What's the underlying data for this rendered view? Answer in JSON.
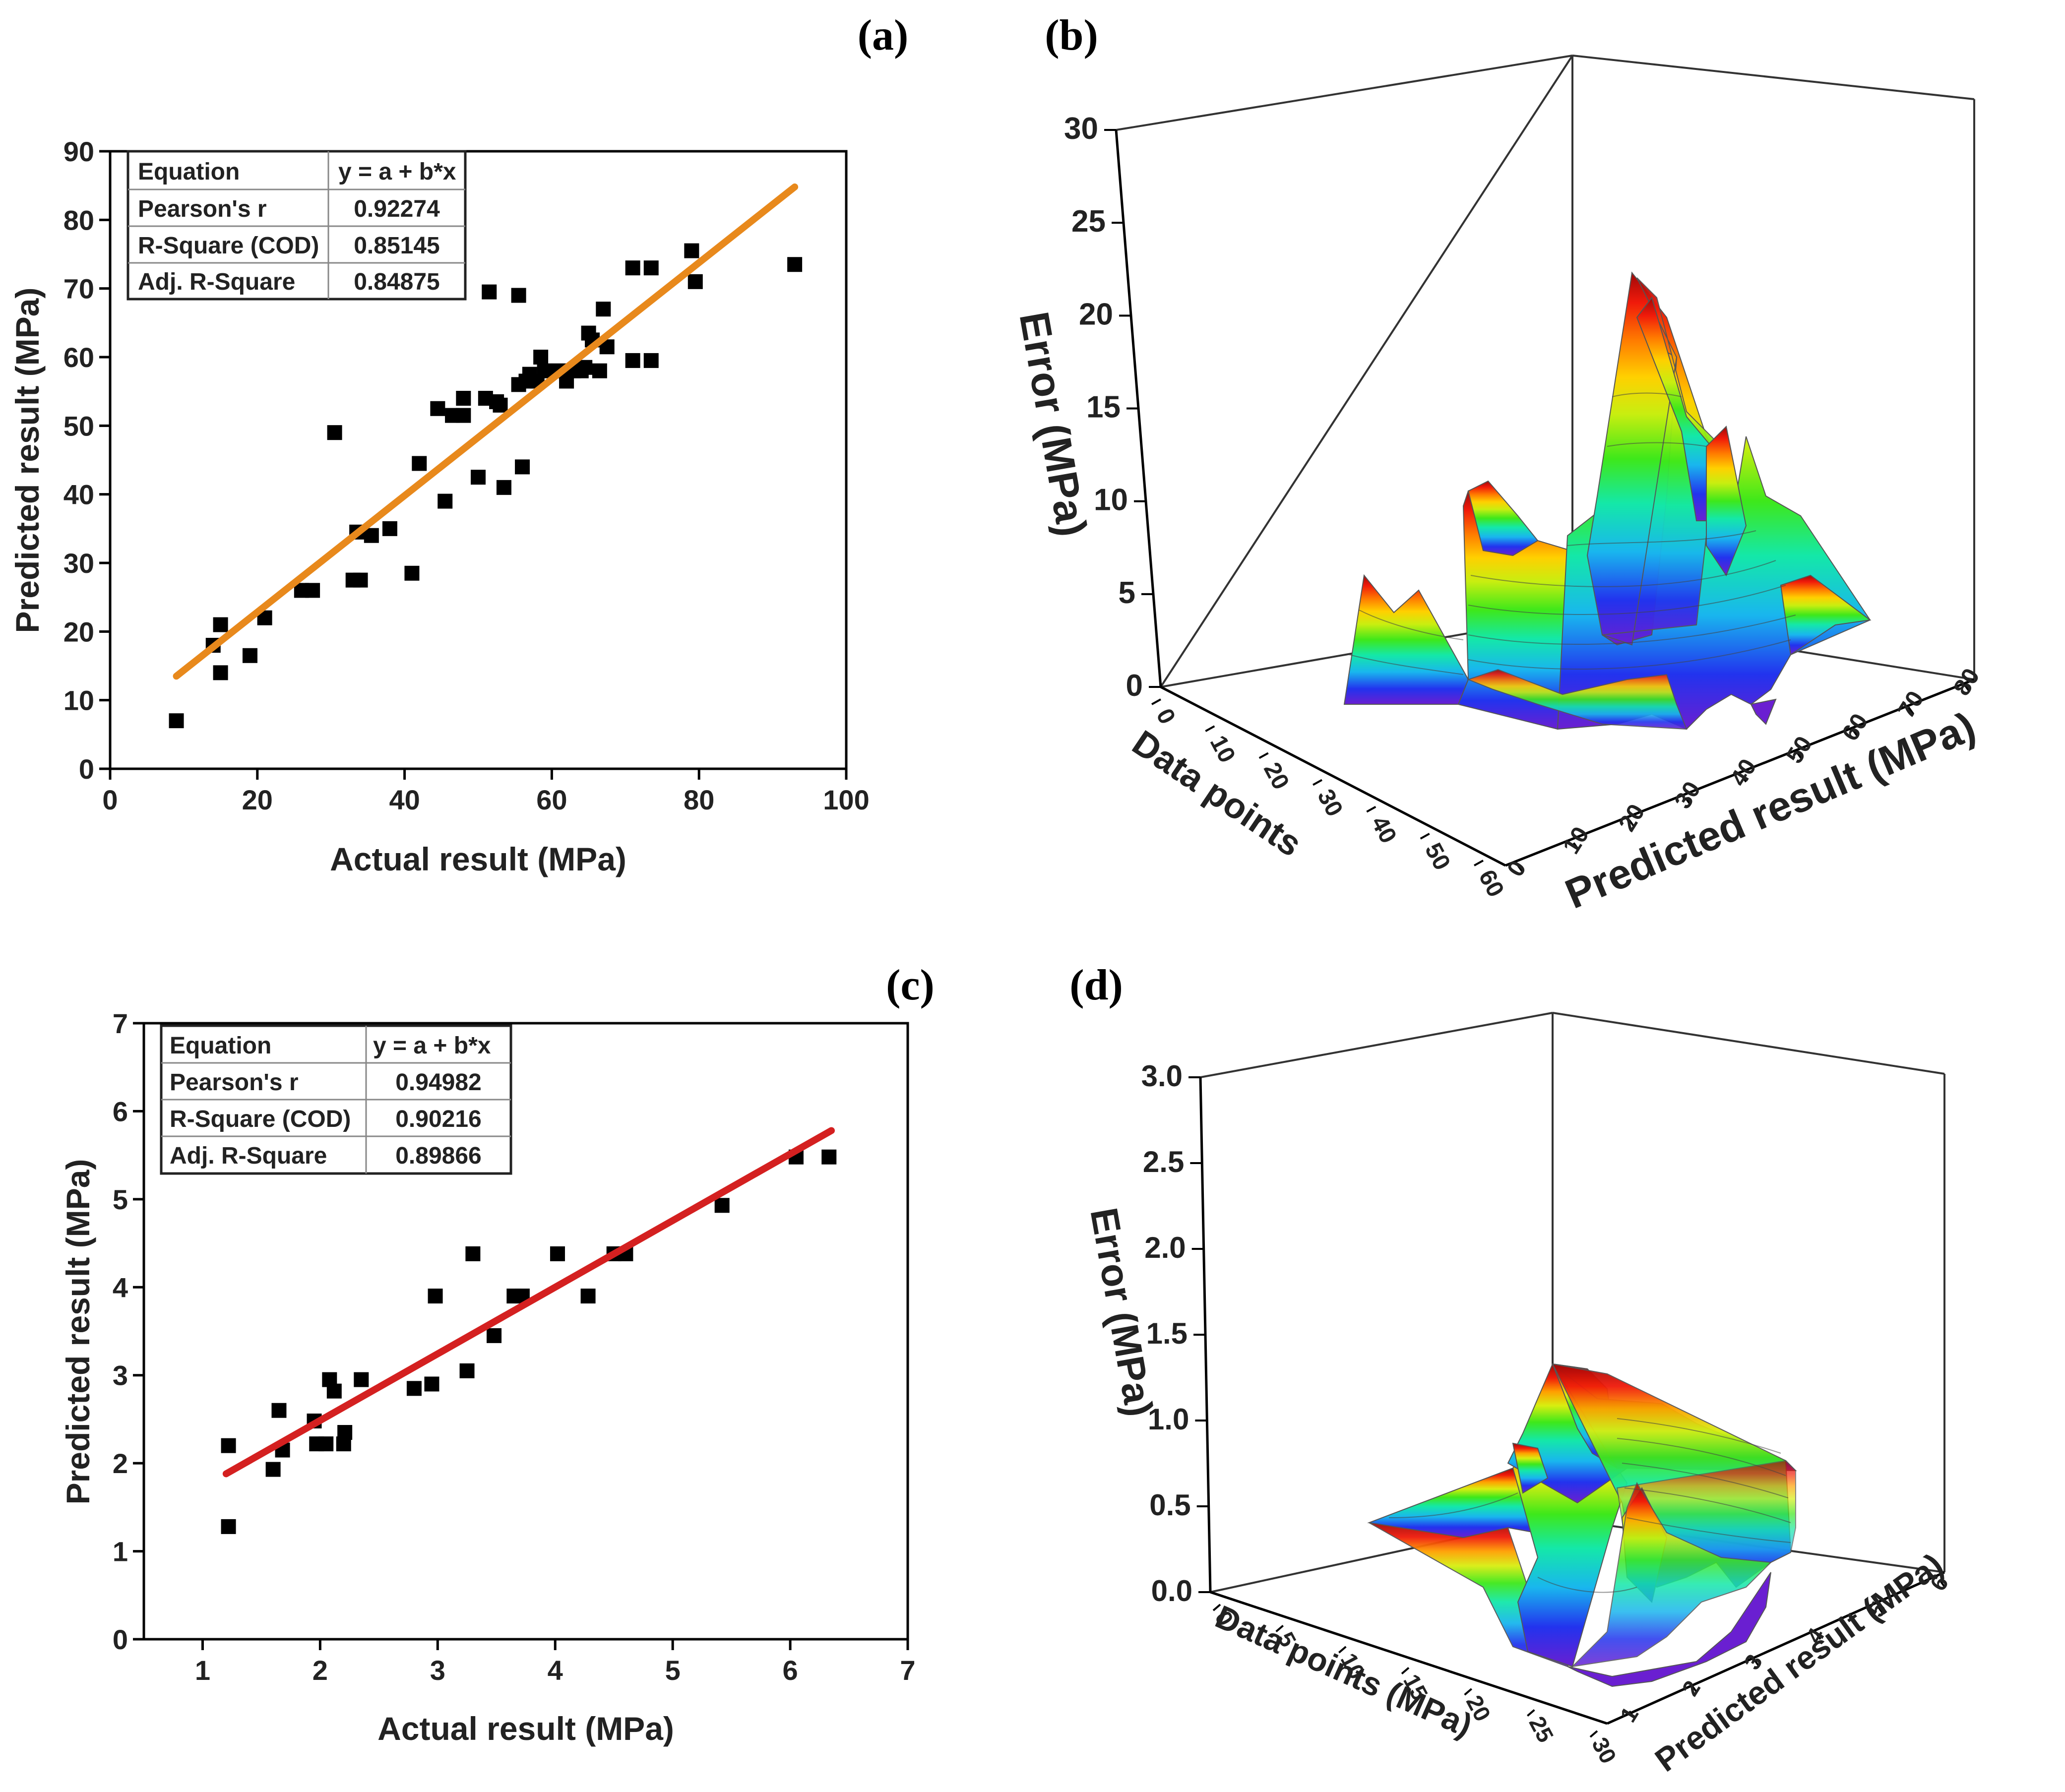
{
  "chart_data": [
    {
      "panel": "(a)",
      "type": "scatter",
      "xlabel": "Actual result (MPa)",
      "ylabel": "Predicted result (MPa)",
      "xlim": [
        0,
        100
      ],
      "ylim": [
        0,
        90
      ],
      "xticks": [
        "0",
        "20",
        "40",
        "60",
        "80",
        "100"
      ],
      "yticks": [
        "0",
        "10",
        "20",
        "30",
        "40",
        "50",
        "60",
        "70",
        "80",
        "90"
      ],
      "fit_line": {
        "x": [
          9,
          93
        ],
        "y": [
          13.5,
          84.8
        ],
        "color": "#e8891c"
      },
      "stats_table": [
        [
          "Equation",
          "y = a + b*x"
        ],
        [
          "Pearson's r",
          "0.92274"
        ],
        [
          "R-Square (COD)",
          "0.85145"
        ],
        [
          "Adj. R-Square",
          "0.84875"
        ]
      ],
      "points": [
        [
          9,
          7
        ],
        [
          14,
          18
        ],
        [
          15,
          21
        ],
        [
          15,
          14
        ],
        [
          19,
          16.5
        ],
        [
          21,
          22
        ],
        [
          26,
          26
        ],
        [
          27.5,
          26
        ],
        [
          30.5,
          49
        ],
        [
          33,
          27.5
        ],
        [
          33.5,
          34.5
        ],
        [
          34,
          27.5
        ],
        [
          35.5,
          34
        ],
        [
          38,
          35
        ],
        [
          41,
          28.5
        ],
        [
          42,
          44.5
        ],
        [
          44.5,
          52.5
        ],
        [
          45.5,
          39
        ],
        [
          46.5,
          51.5
        ],
        [
          48,
          54
        ],
        [
          48,
          51.5
        ],
        [
          50,
          42.5
        ],
        [
          51,
          54
        ],
        [
          51.5,
          69.5
        ],
        [
          52.5,
          53.5
        ],
        [
          53,
          53
        ],
        [
          53.5,
          41
        ],
        [
          55.5,
          69
        ],
        [
          55.5,
          56
        ],
        [
          56,
          44
        ],
        [
          56.5,
          56.5
        ],
        [
          57,
          57.5
        ],
        [
          58,
          56.5
        ],
        [
          58.5,
          60
        ],
        [
          59,
          58
        ],
        [
          61,
          58
        ],
        [
          62,
          56.5
        ],
        [
          63,
          58
        ],
        [
          64,
          58
        ],
        [
          64.5,
          58.5
        ],
        [
          65,
          63.5
        ],
        [
          65.5,
          62.5
        ],
        [
          66.5,
          58
        ],
        [
          67,
          67
        ],
        [
          67.5,
          61.5
        ],
        [
          71,
          73
        ],
        [
          71,
          59.5
        ],
        [
          73.5,
          73
        ],
        [
          73.5,
          59.5
        ],
        [
          79,
          75.5
        ],
        [
          79.5,
          71
        ],
        [
          93,
          73.5
        ]
      ]
    },
    {
      "panel": "(b)",
      "type": "surface3d",
      "xlabel": "Data points",
      "ylabel": "Predicted result (MPa)",
      "zlabel": "Error (MPa)",
      "xticks": [
        "0",
        "10",
        "20",
        "30",
        "40",
        "50",
        "60"
      ],
      "yticks": [
        "0",
        "10",
        "20",
        "30",
        "40",
        "50",
        "60",
        "70",
        "80"
      ],
      "zticks": [
        "0",
        "5",
        "10",
        "15",
        "20",
        "25",
        "30"
      ]
    },
    {
      "panel": "(c)",
      "type": "scatter",
      "xlabel": "Actual result (MPa)",
      "ylabel": "Predicted result (MPa)",
      "xlim": [
        0.5,
        7
      ],
      "ylim": [
        0,
        7
      ],
      "xticks": [
        "1",
        "2",
        "3",
        "4",
        "5",
        "6",
        "7"
      ],
      "yticks": [
        "0",
        "1",
        "2",
        "3",
        "4",
        "5",
        "6",
        "7"
      ],
      "fit_line": {
        "x": [
          1.2,
          6.35
        ],
        "y": [
          1.88,
          5.78
        ],
        "color": "#d42020"
      },
      "stats_table": [
        [
          "Equation",
          "y = a + b*x"
        ],
        [
          "Pearson's r",
          "0.94982"
        ],
        [
          "R-Square (COD)",
          "0.90216"
        ],
        [
          "Adj. R-Square",
          "0.89866"
        ]
      ],
      "points": [
        [
          1.22,
          2.2
        ],
        [
          1.22,
          1.28
        ],
        [
          1.6,
          1.93
        ],
        [
          1.65,
          2.6
        ],
        [
          1.68,
          2.15
        ],
        [
          1.95,
          2.48
        ],
        [
          1.97,
          2.22
        ],
        [
          2.05,
          2.22
        ],
        [
          2.08,
          2.95
        ],
        [
          2.12,
          2.82
        ],
        [
          2.2,
          2.22
        ],
        [
          2.21,
          2.35
        ],
        [
          2.35,
          2.95
        ],
        [
          2.8,
          2.85
        ],
        [
          2.95,
          2.9
        ],
        [
          2.98,
          3.9
        ],
        [
          3.25,
          3.05
        ],
        [
          3.3,
          4.38
        ],
        [
          3.48,
          3.45
        ],
        [
          3.65,
          3.9
        ],
        [
          3.72,
          3.9
        ],
        [
          4.02,
          4.38
        ],
        [
          4.28,
          3.9
        ],
        [
          4.5,
          4.38
        ],
        [
          4.6,
          4.38
        ],
        [
          5.42,
          4.93
        ],
        [
          6.05,
          5.48
        ],
        [
          6.33,
          5.48
        ]
      ]
    },
    {
      "panel": "(d)",
      "type": "surface3d",
      "xlabel": "Data points (MPa)",
      "ylabel": "Predicted result (MPa)",
      "zlabel": "Error (MPa)",
      "xticks": [
        "0",
        "5",
        "10",
        "15",
        "20",
        "25",
        "30"
      ],
      "yticks": [
        "1",
        "2",
        "3",
        "4",
        "5",
        "6"
      ],
      "zticks": [
        "0.0",
        "0.5",
        "1.0",
        "1.5",
        "2.0",
        "2.5",
        "3.0"
      ]
    }
  ]
}
